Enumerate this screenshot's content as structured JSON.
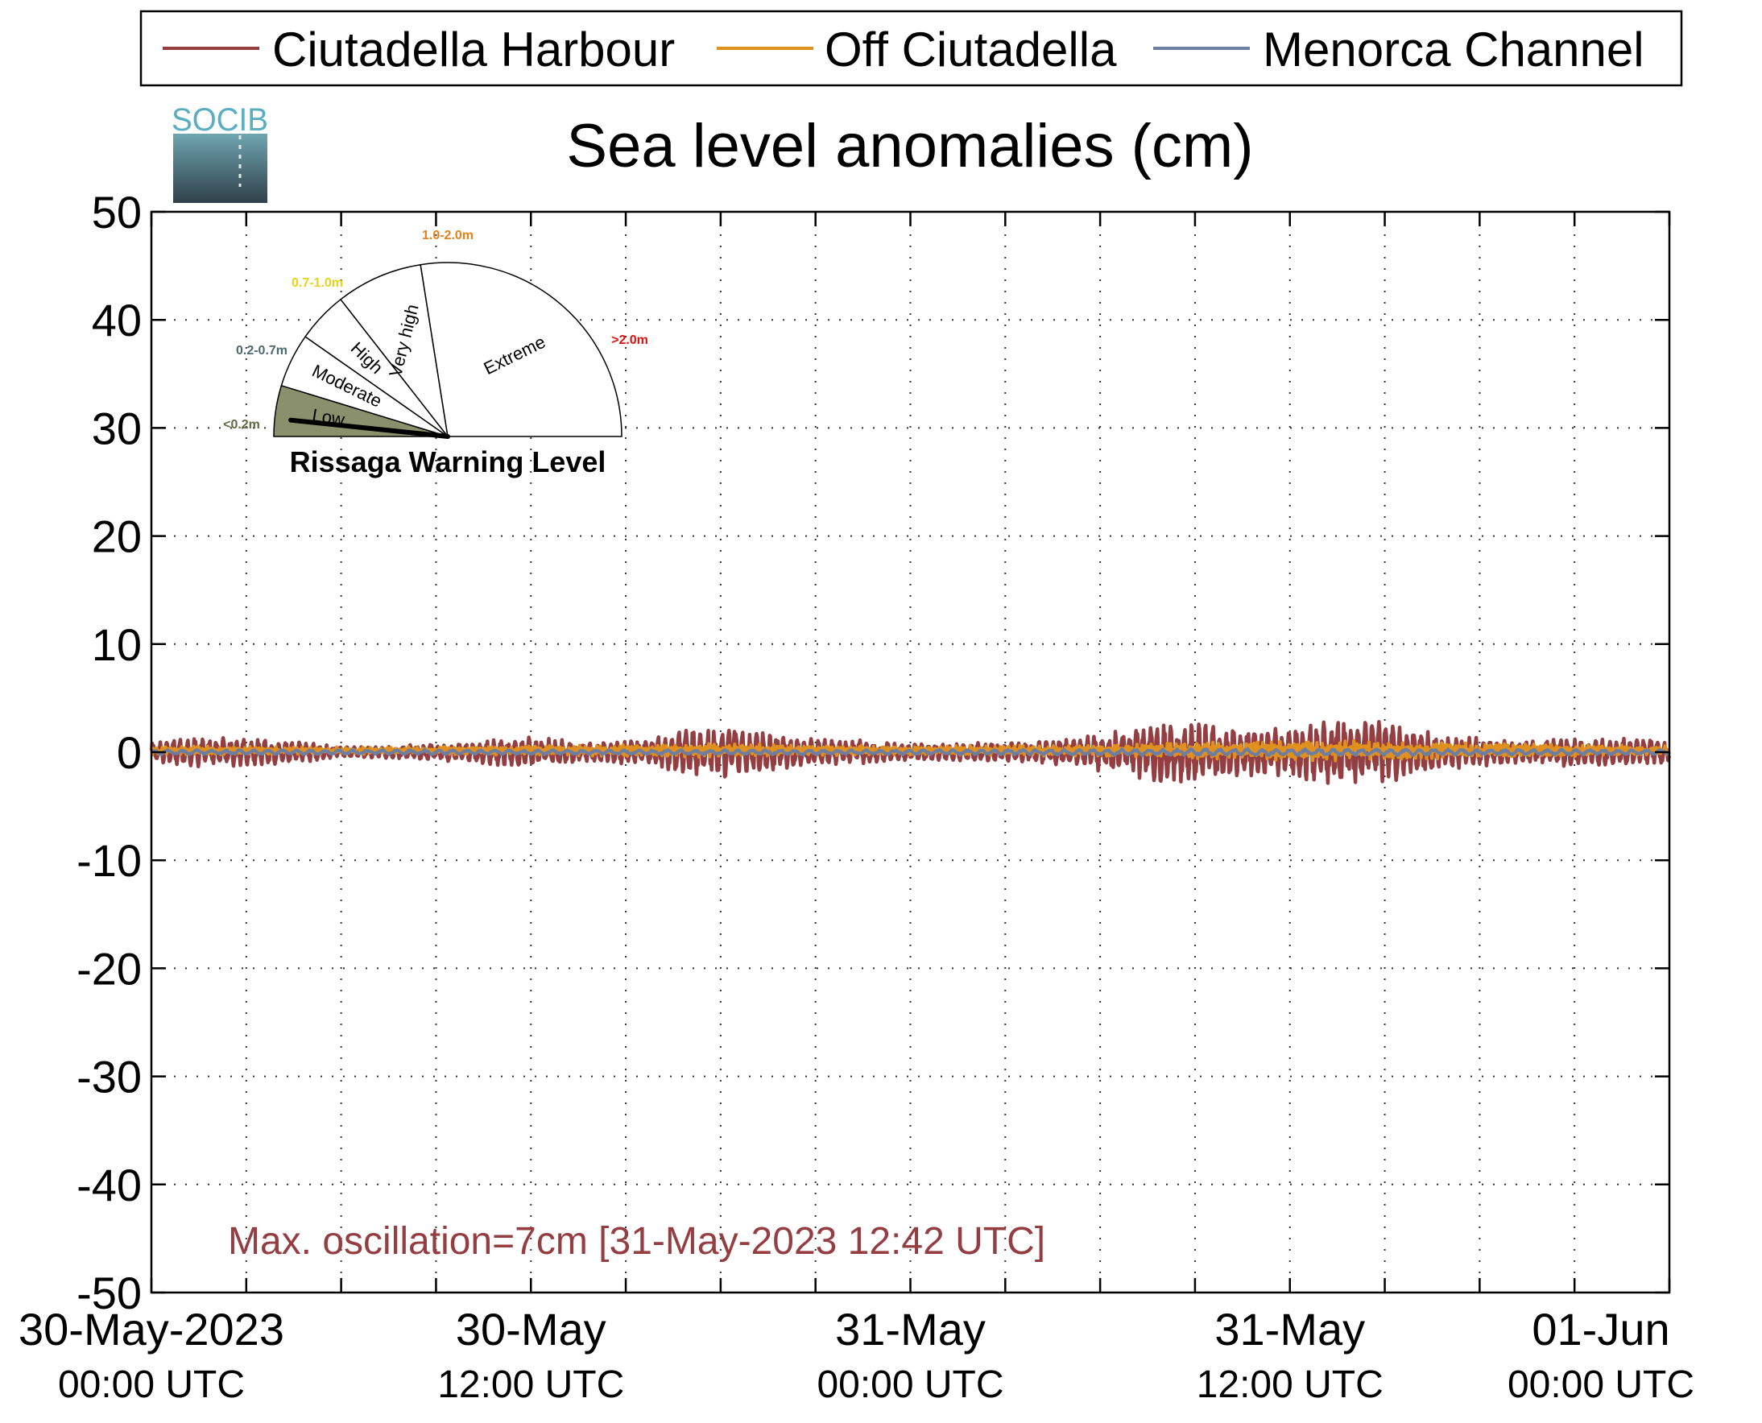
{
  "legend": {
    "items": [
      {
        "label": "Ciutadella Harbour",
        "color": "#943e42"
      },
      {
        "label": "Off Ciutadella",
        "color": "#e0901e"
      },
      {
        "label": "Menorca Channel",
        "color": "#6e7ea0"
      }
    ]
  },
  "logo": {
    "text": "SOCIB"
  },
  "chart_data": {
    "type": "line",
    "title": "Sea level anomalies (cm)",
    "xlabel": "",
    "ylabel": "",
    "ylim": [
      -50,
      50
    ],
    "yticks": [
      50,
      40,
      30,
      20,
      10,
      0,
      -10,
      -20,
      -30,
      -40,
      -50
    ],
    "yticklabels": [
      "50",
      "40",
      "30",
      "20",
      "10",
      "0",
      "-10",
      "-20",
      "-30",
      "-40",
      "-50"
    ],
    "xlim_hours": [
      0,
      48
    ],
    "xticks": [
      {
        "hours": 0,
        "line1": "30-May-2023",
        "line2": "00:00 UTC"
      },
      {
        "hours": 12,
        "line1": "30-May",
        "line2": "12:00 UTC"
      },
      {
        "hours": 24,
        "line1": "31-May",
        "line2": "00:00 UTC"
      },
      {
        "hours": 36,
        "line1": "31-May",
        "line2": "12:00 UTC"
      },
      {
        "hours": 48,
        "line1": "01-Jun",
        "line2": "00:00 UTC"
      }
    ],
    "minor_tick_hours": [
      3,
      6,
      9,
      15,
      18,
      21,
      27,
      30,
      33,
      39,
      42,
      45
    ],
    "grid": true,
    "legend_position": "top",
    "series": [
      {
        "name": "Ciutadella Harbour",
        "color": "#943e42",
        "envelope_hours": [
          0,
          1,
          2,
          3,
          4,
          5,
          6,
          7,
          8,
          9,
          10,
          11,
          12,
          13,
          14,
          15,
          16,
          17,
          18,
          19,
          20,
          21,
          22,
          23,
          24,
          25,
          26,
          27,
          28,
          29,
          30,
          31,
          32,
          33,
          34,
          35,
          36,
          37,
          38,
          39,
          40,
          41,
          42,
          43,
          44,
          45,
          46,
          47,
          48
        ],
        "envelope_amplitude": [
          0.8,
          1.2,
          1.3,
          1.2,
          1.1,
          0.8,
          0.5,
          0.5,
          0.6,
          0.8,
          0.9,
          1.2,
          1.3,
          1.1,
          0.9,
          1.0,
          1.3,
          1.9,
          2.2,
          1.8,
          1.4,
          1.2,
          1.1,
          0.9,
          0.7,
          0.7,
          0.8,
          0.8,
          0.9,
          1.2,
          1.6,
          2.2,
          2.8,
          2.5,
          2.2,
          1.9,
          2.2,
          2.6,
          2.9,
          2.6,
          2.0,
          1.6,
          1.2,
          1.0,
          1.1,
          1.3,
          1.3,
          1.2,
          1.0
        ]
      },
      {
        "name": "Off Ciutadella",
        "color": "#e0901e",
        "envelope_hours": [
          0,
          6,
          12,
          18,
          24,
          30,
          33,
          36,
          38,
          42,
          48
        ],
        "envelope_amplitude": [
          0.4,
          0.3,
          0.4,
          0.6,
          0.4,
          0.5,
          0.7,
          0.9,
          0.9,
          0.6,
          0.4
        ]
      },
      {
        "name": "Menorca Channel",
        "color": "#6e7ea0",
        "envelope_hours": [
          0,
          12,
          24,
          36,
          48
        ],
        "envelope_amplitude": [
          0.2,
          0.2,
          0.2,
          0.3,
          0.2
        ]
      }
    ],
    "gauge": {
      "title": "Rissaga Warning Level",
      "sectors": [
        {
          "label": "Low",
          "range": "<0.2m",
          "range_color": "#5e6a40",
          "fill": "#8a8f6c"
        },
        {
          "label": "Moderate",
          "range": "0.2-0.7m",
          "range_color": "#4a6a70",
          "fill": "#ffffff"
        },
        {
          "label": "High",
          "range": "0.7-1.0m",
          "range_color": "#e8d21c",
          "fill": "#ffffff"
        },
        {
          "label": "Very high",
          "range": "1.0-2.0m",
          "range_color": "#e8801a",
          "fill": "#ffffff"
        },
        {
          "label": "Extreme",
          "range": ">2.0m",
          "range_color": "#e01010",
          "fill": "#ffffff"
        }
      ],
      "needle_value": 0.07
    },
    "annotation": {
      "text": "Max. oscillation=7cm [31-May-2023 12:42 UTC]",
      "color": "#943e42"
    }
  }
}
